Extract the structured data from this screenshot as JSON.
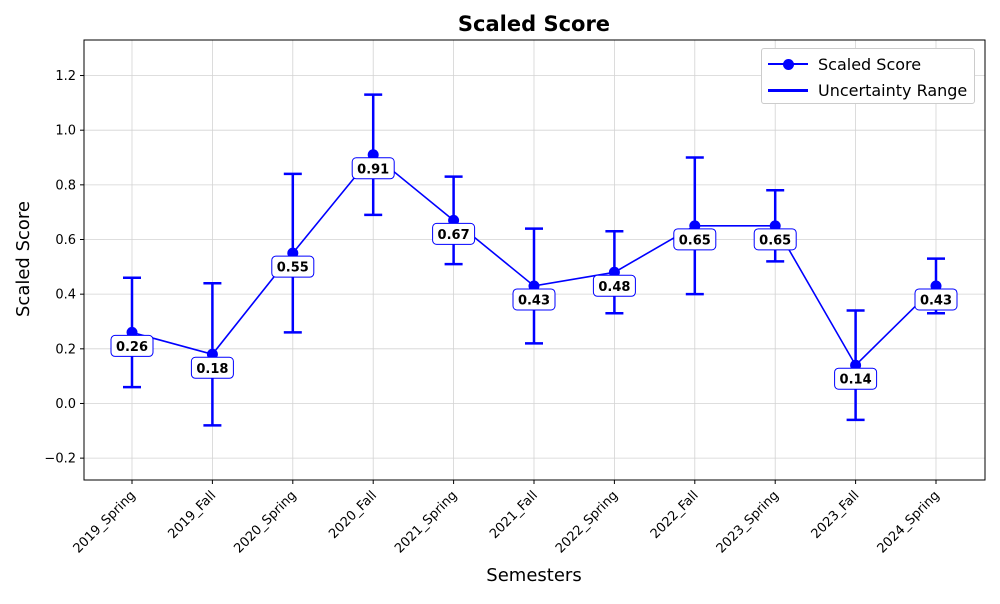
{
  "chart_data": {
    "type": "line",
    "title": "Scaled Score",
    "xlabel": "Semesters",
    "ylabel": "Scaled Score",
    "categories": [
      "2019_Spring",
      "2019_Fall",
      "2020_Spring",
      "2020_Fall",
      "2021_Spring",
      "2021_Fall",
      "2022_Spring",
      "2022_Fall",
      "2023_Spring",
      "2023_Fall",
      "2024_Spring"
    ],
    "series": [
      {
        "name": "Scaled Score",
        "values": [
          0.26,
          0.18,
          0.55,
          0.91,
          0.67,
          0.43,
          0.48,
          0.65,
          0.65,
          0.14,
          0.43
        ],
        "value_labels": [
          "0.26",
          "0.18",
          "0.55",
          "0.91",
          "0.67",
          "0.43",
          "0.48",
          "0.65",
          "0.65",
          "0.14",
          "0.43"
        ],
        "error_low": [
          0.06,
          -0.08,
          0.26,
          0.69,
          0.51,
          0.22,
          0.33,
          0.4,
          0.52,
          -0.06,
          0.33
        ],
        "error_high": [
          0.46,
          0.44,
          0.84,
          1.13,
          0.83,
          0.64,
          0.63,
          0.9,
          0.78,
          0.34,
          0.53
        ]
      }
    ],
    "legend": [
      "Scaled Score",
      "Uncertainty Range"
    ],
    "legend_position": "top-right",
    "ylim": [
      -0.28,
      1.33
    ],
    "yticks": [
      -0.2,
      0.0,
      0.2,
      0.4,
      0.6,
      0.8,
      1.0,
      1.2
    ],
    "ytick_labels": [
      "−0.2",
      "0.0",
      "0.2",
      "0.4",
      "0.6",
      "0.8",
      "1.0",
      "1.2"
    ],
    "grid": true,
    "colors": {
      "series": "#0000ff",
      "grid": "#d3d3d3",
      "label_border": "#0000ff"
    }
  }
}
